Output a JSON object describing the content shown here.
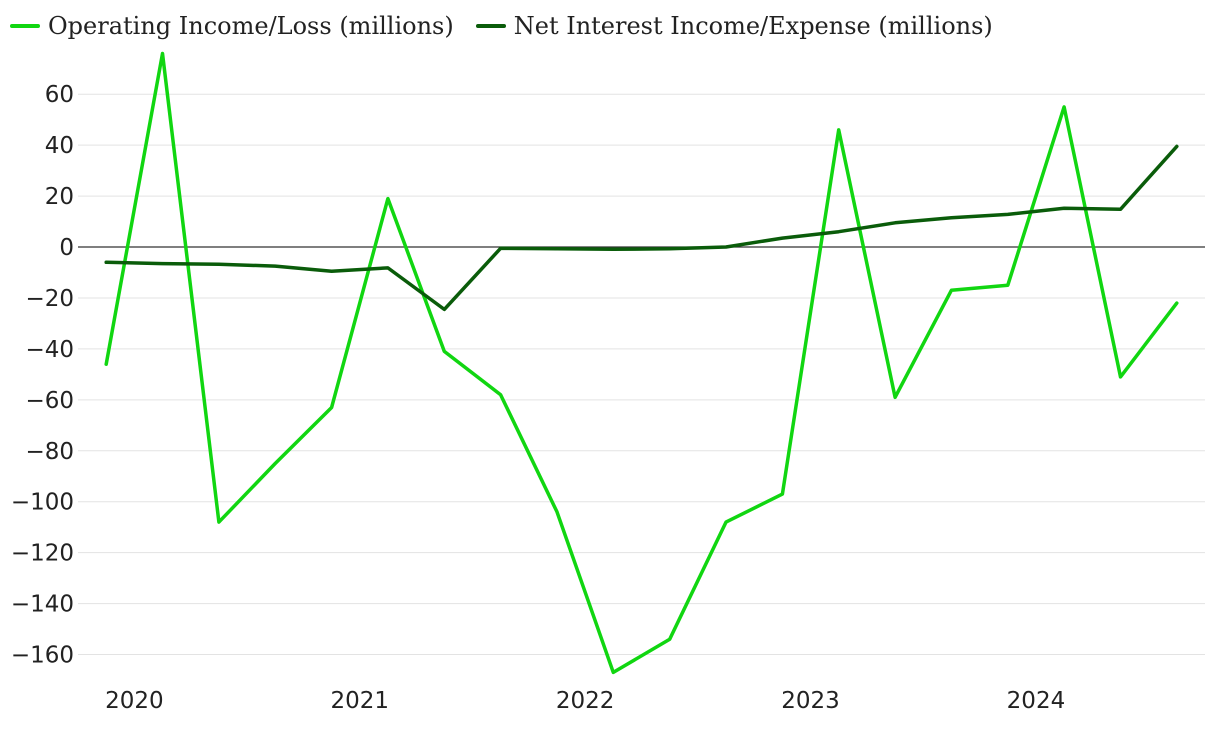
{
  "colors": {
    "operating": "#11d611",
    "interest": "#0a5c0a",
    "grid": "#e3e3e3",
    "zero": "#333333",
    "text": "#222222"
  },
  "chart_data": {
    "type": "line",
    "legend_position": "top-left",
    "grid": true,
    "ylim": [
      -170,
      75
    ],
    "yticks": [
      60,
      40,
      20,
      0,
      -20,
      -40,
      -60,
      -80,
      -100,
      -120,
      -140,
      -160
    ],
    "ytick_labels": [
      "60",
      "40",
      "20",
      "0",
      "−20",
      "−40",
      "−60",
      "−80",
      "−100",
      "−120",
      "−140",
      "−160"
    ],
    "xlim": [
      2019.75,
      2024.75
    ],
    "xticks": [
      2020,
      2021,
      2022,
      2023,
      2024
    ],
    "xtick_labels": [
      "2020",
      "2021",
      "2022",
      "2023",
      "2024"
    ],
    "x": [
      2019.875,
      2020.125,
      2020.375,
      2020.625,
      2020.875,
      2021.125,
      2021.375,
      2021.625,
      2021.875,
      2022.125,
      2022.375,
      2022.625,
      2022.875,
      2023.125,
      2023.375,
      2023.625,
      2023.875,
      2024.125,
      2024.375,
      2024.625
    ],
    "series": [
      {
        "name": "Operating Income/Loss (millions)",
        "values": [
          -46,
          76,
          -108,
          -85,
          -63,
          19,
          -41,
          -58,
          -104,
          -167,
          -154,
          -108,
          -97,
          46,
          -59,
          -17,
          -15,
          55,
          -51,
          -22
        ]
      },
      {
        "name": "Net Interest Income/Expense (millions)",
        "values": [
          -6,
          -6.5,
          -6.8,
          -7.5,
          -9.5,
          -8.2,
          -24.5,
          -0.5,
          -0.7,
          -0.9,
          -0.7,
          0,
          3.5,
          6,
          9.5,
          11.5,
          12.8,
          15.2,
          14.8,
          39.5
        ]
      }
    ]
  }
}
